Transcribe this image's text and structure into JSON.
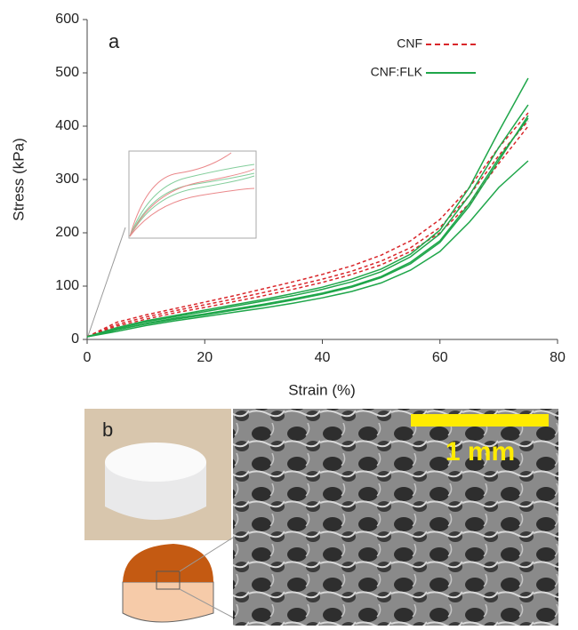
{
  "chart_data": {
    "type": "line",
    "panel_label": "a",
    "xlabel": "Strain (%)",
    "ylabel": "Stress (kPa)",
    "x": [
      0,
      5,
      10,
      15,
      20,
      25,
      30,
      35,
      40,
      45,
      50,
      55,
      60,
      65,
      70,
      75
    ],
    "xlim": [
      0,
      80
    ],
    "xticks": [
      0,
      20,
      40,
      60,
      80
    ],
    "ylim": [
      0,
      600
    ],
    "yticks": [
      0,
      100,
      200,
      300,
      400,
      500,
      600
    ],
    "series": [
      {
        "name": "CNF",
        "color": "#d9262a",
        "dashed": true,
        "curves": [
          [
            5,
            32,
            46,
            58,
            70,
            82,
            95,
            108,
            122,
            138,
            158,
            185,
            225,
            285,
            360,
            425
          ],
          [
            5,
            28,
            42,
            54,
            65,
            76,
            88,
            100,
            113,
            128,
            147,
            172,
            210,
            270,
            345,
            410
          ],
          [
            5,
            25,
            38,
            50,
            60,
            71,
            82,
            94,
            107,
            122,
            140,
            165,
            200,
            255,
            330,
            400
          ]
        ]
      },
      {
        "name": "CNF:FLK",
        "color": "#1fa64a",
        "dashed": false,
        "curves": [
          [
            5,
            22,
            35,
            45,
            55,
            65,
            75,
            86,
            98,
            113,
            132,
            160,
            205,
            285,
            390,
            490
          ],
          [
            5,
            20,
            33,
            43,
            52,
            62,
            72,
            82,
            94,
            108,
            127,
            155,
            198,
            270,
            360,
            440
          ],
          [
            5,
            18,
            30,
            40,
            48,
            57,
            66,
            76,
            87,
            100,
            118,
            145,
            185,
            255,
            340,
            415
          ],
          [
            5,
            15,
            26,
            35,
            43,
            51,
            59,
            68,
            78,
            90,
            106,
            130,
            165,
            220,
            285,
            335
          ],
          [
            5,
            18,
            29,
            38,
            46,
            55,
            64,
            74,
            85,
            98,
            116,
            142,
            182,
            250,
            335,
            420
          ]
        ]
      }
    ]
  },
  "panel_b": {
    "label": "b",
    "scale_bar": "1 mm"
  }
}
